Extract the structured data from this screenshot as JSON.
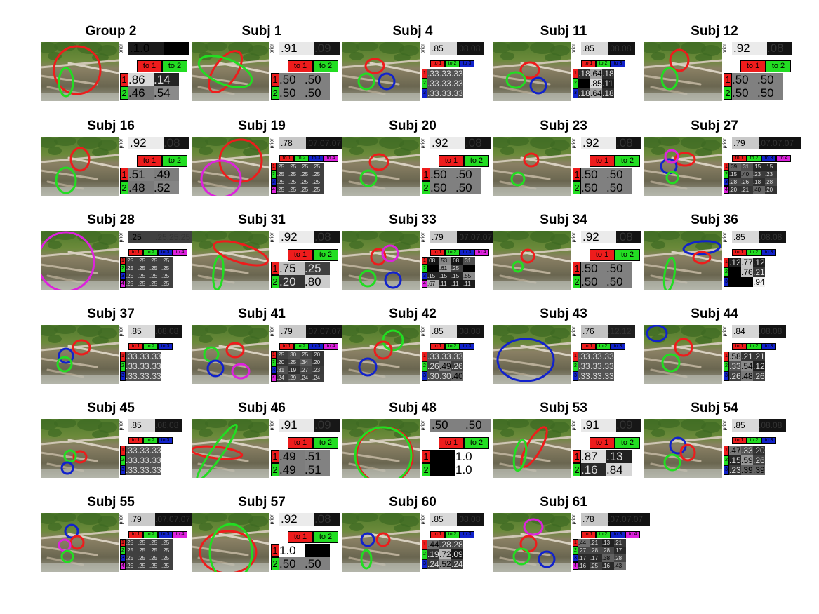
{
  "colors": {
    "red": "#ee1c1c",
    "green": "#22dd22",
    "blue": "#1122cc",
    "magenta": "#dd22dd"
  },
  "prior_label": "prior",
  "to_labels": [
    "to 1",
    "to 2",
    "to 3",
    "to 4"
  ],
  "panels": [
    {
      "title": "Group 2",
      "k": 2,
      "prior": [
        ".1.0",
        ""
      ],
      "matrix": [
        [
          ".86",
          ".14"
        ],
        [
          ".46",
          ".54"
        ]
      ]
    },
    {
      "title": "Subj 1",
      "k": 2,
      "prior": [
        ".91",
        ".09"
      ],
      "matrix": [
        [
          ".50",
          ".50"
        ],
        [
          ".50",
          ".50"
        ]
      ]
    },
    {
      "title": "Subj 4",
      "k": 3,
      "prior": [
        ".85",
        ".08.08"
      ],
      "matrix": [
        [
          ".33",
          ".33",
          ".33"
        ],
        [
          ".33",
          ".33",
          ".33"
        ],
        [
          ".33",
          ".33",
          ".33"
        ]
      ]
    },
    {
      "title": "Subj 11",
      "k": 3,
      "prior": [
        ".85",
        ".08.08"
      ],
      "matrix": [
        [
          ".18",
          ".64",
          ".18"
        ],
        [
          "",
          ".85",
          ".11"
        ],
        [
          ".18",
          ".64",
          ".18"
        ]
      ]
    },
    {
      "title": "Subj 12",
      "k": 2,
      "prior": [
        ".92",
        ".08"
      ],
      "matrix": [
        [
          ".50",
          ".50"
        ],
        [
          ".50",
          ".50"
        ]
      ]
    },
    {
      "title": "Subj 16",
      "k": 2,
      "prior": [
        ".92",
        ".08"
      ],
      "matrix": [
        [
          ".51",
          ".49"
        ],
        [
          ".48",
          ".52"
        ]
      ]
    },
    {
      "title": "Subj 19",
      "k": 4,
      "prior": [
        ".78",
        ".07.07.07"
      ],
      "matrix": [
        [
          ".25",
          ".25",
          ".25",
          ".25"
        ],
        [
          ".25",
          ".25",
          ".25",
          ".25"
        ],
        [
          ".25",
          ".25",
          ".25",
          ".25"
        ],
        [
          ".25",
          ".25",
          ".25",
          ".25"
        ]
      ]
    },
    {
      "title": "Subj 20",
      "k": 2,
      "prior": [
        ".92",
        ".08"
      ],
      "matrix": [
        [
          ".50",
          ".50"
        ],
        [
          ".50",
          ".50"
        ]
      ]
    },
    {
      "title": "Subj 23",
      "k": 2,
      "prior": [
        ".92",
        ".08"
      ],
      "matrix": [
        [
          ".50",
          ".50"
        ],
        [
          ".50",
          ".50"
        ]
      ]
    },
    {
      "title": "Subj 27",
      "k": 4,
      "prior": [
        ".79",
        ".07.07.07"
      ],
      "matrix": [
        [
          ".39",
          ".31",
          ".15",
          ".15"
        ],
        [
          ".15",
          ".40",
          ".23",
          ".23"
        ],
        [
          ".28",
          ".26",
          ".18",
          ".28"
        ],
        [
          ".20",
          ".21",
          ".40",
          ".20"
        ]
      ]
    },
    {
      "title": "Subj 28",
      "k": 4,
      "prior": [
        ".25",
        ".25.25.25"
      ],
      "matrix": [
        [
          ".25",
          ".25",
          ".25",
          ".25"
        ],
        [
          ".25",
          ".25",
          ".25",
          ".25"
        ],
        [
          ".25",
          ".25",
          ".25",
          ".25"
        ],
        [
          ".25",
          ".25",
          ".25",
          ".25"
        ]
      ]
    },
    {
      "title": "Subj 31",
      "k": 2,
      "prior": [
        ".92",
        ".08"
      ],
      "matrix": [
        [
          ".75",
          ".25"
        ],
        [
          ".20",
          ".80"
        ]
      ]
    },
    {
      "title": "Subj 33",
      "k": 4,
      "prior": [
        ".79",
        ".07.07.07"
      ],
      "matrix": [
        [
          ".08",
          ".53",
          ".08",
          ".31"
        ],
        [
          "",
          ".61",
          ".25",
          ""
        ],
        [
          ".15",
          ".15",
          ".15",
          ".55"
        ],
        [
          ".67",
          ".11",
          ".11",
          ".11"
        ]
      ]
    },
    {
      "title": "Subj 34",
      "k": 2,
      "prior": [
        ".92",
        ".08"
      ],
      "matrix": [
        [
          ".50",
          ".50"
        ],
        [
          ".50",
          ".50"
        ]
      ]
    },
    {
      "title": "Subj 36",
      "k": 3,
      "prior": [
        ".85",
        ".08.08"
      ],
      "matrix": [
        [
          ".12",
          ".77",
          ".12"
        ],
        [
          "",
          ".76",
          ".21"
        ],
        [
          "",
          "",
          ".94"
        ]
      ]
    },
    {
      "title": "Subj 37",
      "k": 3,
      "prior": [
        ".85",
        ".08.08"
      ],
      "matrix": [
        [
          ".33",
          ".33",
          ".33"
        ],
        [
          ".33",
          ".33",
          ".33"
        ],
        [
          ".33",
          ".33",
          ".33"
        ]
      ]
    },
    {
      "title": "Subj 41",
      "k": 4,
      "prior": [
        ".79",
        ".07.07.07"
      ],
      "matrix": [
        [
          ".25",
          ".30",
          ".25",
          ".20"
        ],
        [
          ".20",
          ".25",
          ".34",
          ".20"
        ],
        [
          ".31",
          ".19",
          ".27",
          ".23"
        ],
        [
          ".24",
          ".29",
          ".24",
          ".24"
        ]
      ]
    },
    {
      "title": "Subj 42",
      "k": 3,
      "prior": [
        ".85",
        ".08.08"
      ],
      "matrix": [
        [
          ".33",
          ".33",
          ".33"
        ],
        [
          ".26",
          ".49",
          ".26"
        ],
        [
          ".30",
          ".30",
          ".40"
        ]
      ]
    },
    {
      "title": "Subj 43",
      "k": 3,
      "prior": [
        ".76",
        ".12.12"
      ],
      "matrix": [
        [
          ".33",
          ".33",
          ".33"
        ],
        [
          ".33",
          ".33",
          ".33"
        ],
        [
          ".33",
          ".33",
          ".33"
        ]
      ]
    },
    {
      "title": "Subj 44",
      "k": 3,
      "prior": [
        ".84",
        ".08.08"
      ],
      "matrix": [
        [
          ".58",
          ".21",
          ".21"
        ],
        [
          ".33",
          ".54",
          ".12"
        ],
        [
          ".26",
          ".48",
          ".26"
        ]
      ]
    },
    {
      "title": "Subj 45",
      "k": 3,
      "prior": [
        ".85",
        ".08.08"
      ],
      "matrix": [
        [
          ".33",
          ".33",
          ".33"
        ],
        [
          ".33",
          ".33",
          ".33"
        ],
        [
          ".33",
          ".33",
          ".33"
        ]
      ]
    },
    {
      "title": "Subj 46",
      "k": 2,
      "prior": [
        ".91",
        ".09"
      ],
      "matrix": [
        [
          ".49",
          ".51"
        ],
        [
          ".49",
          ".51"
        ]
      ]
    },
    {
      "title": "Subj 48",
      "k": 2,
      "prior": [
        ".50",
        ".50"
      ],
      "matrix": [
        [
          "",
          "1.0"
        ],
        [
          "",
          "1.0"
        ]
      ]
    },
    {
      "title": "Subj 53",
      "k": 2,
      "prior": [
        ".91",
        ".09"
      ],
      "matrix": [
        [
          ".87",
          ".13"
        ],
        [
          ".16",
          ".84"
        ]
      ]
    },
    {
      "title": "Subj 54",
      "k": 3,
      "prior": [
        ".85",
        ".08.08"
      ],
      "matrix": [
        [
          ".47",
          ".33",
          ".20"
        ],
        [
          ".15",
          ".59",
          ".26"
        ],
        [
          ".23",
          ".39",
          ".39"
        ]
      ]
    },
    {
      "title": "Subj 55",
      "k": 4,
      "prior": [
        ".79",
        ".07.07.07"
      ],
      "matrix": [
        [
          ".25",
          ".25",
          ".25",
          ".25"
        ],
        [
          ".25",
          ".25",
          ".25",
          ".25"
        ],
        [
          ".25",
          ".25",
          ".25",
          ".25"
        ],
        [
          ".25",
          ".25",
          ".25",
          ".25"
        ]
      ]
    },
    {
      "title": "Subj 57",
      "k": 2,
      "prior": [
        ".92",
        ".08"
      ],
      "matrix": [
        [
          "1.0",
          ""
        ],
        [
          ".50",
          ".50"
        ]
      ]
    },
    {
      "title": "Subj 60",
      "k": 3,
      "prior": [
        ".85",
        ".08.08"
      ],
      "matrix": [
        [
          ".44",
          ".28",
          ".28"
        ],
        [
          ".19",
          ".72",
          ".09"
        ],
        [
          ".24",
          ".52",
          ".24"
        ]
      ]
    },
    {
      "title": "Subj 61",
      "k": 4,
      "prior": [
        ".78",
        ".07.07.07"
      ],
      "matrix": [
        [
          ".44",
          ".21",
          ".13",
          ".21"
        ],
        [
          ".27",
          ".28",
          ".28",
          ".17"
        ],
        [
          ".17",
          ".17",
          ".38",
          ".28"
        ],
        [
          ".16",
          ".25",
          ".16",
          ".43"
        ]
      ]
    }
  ]
}
